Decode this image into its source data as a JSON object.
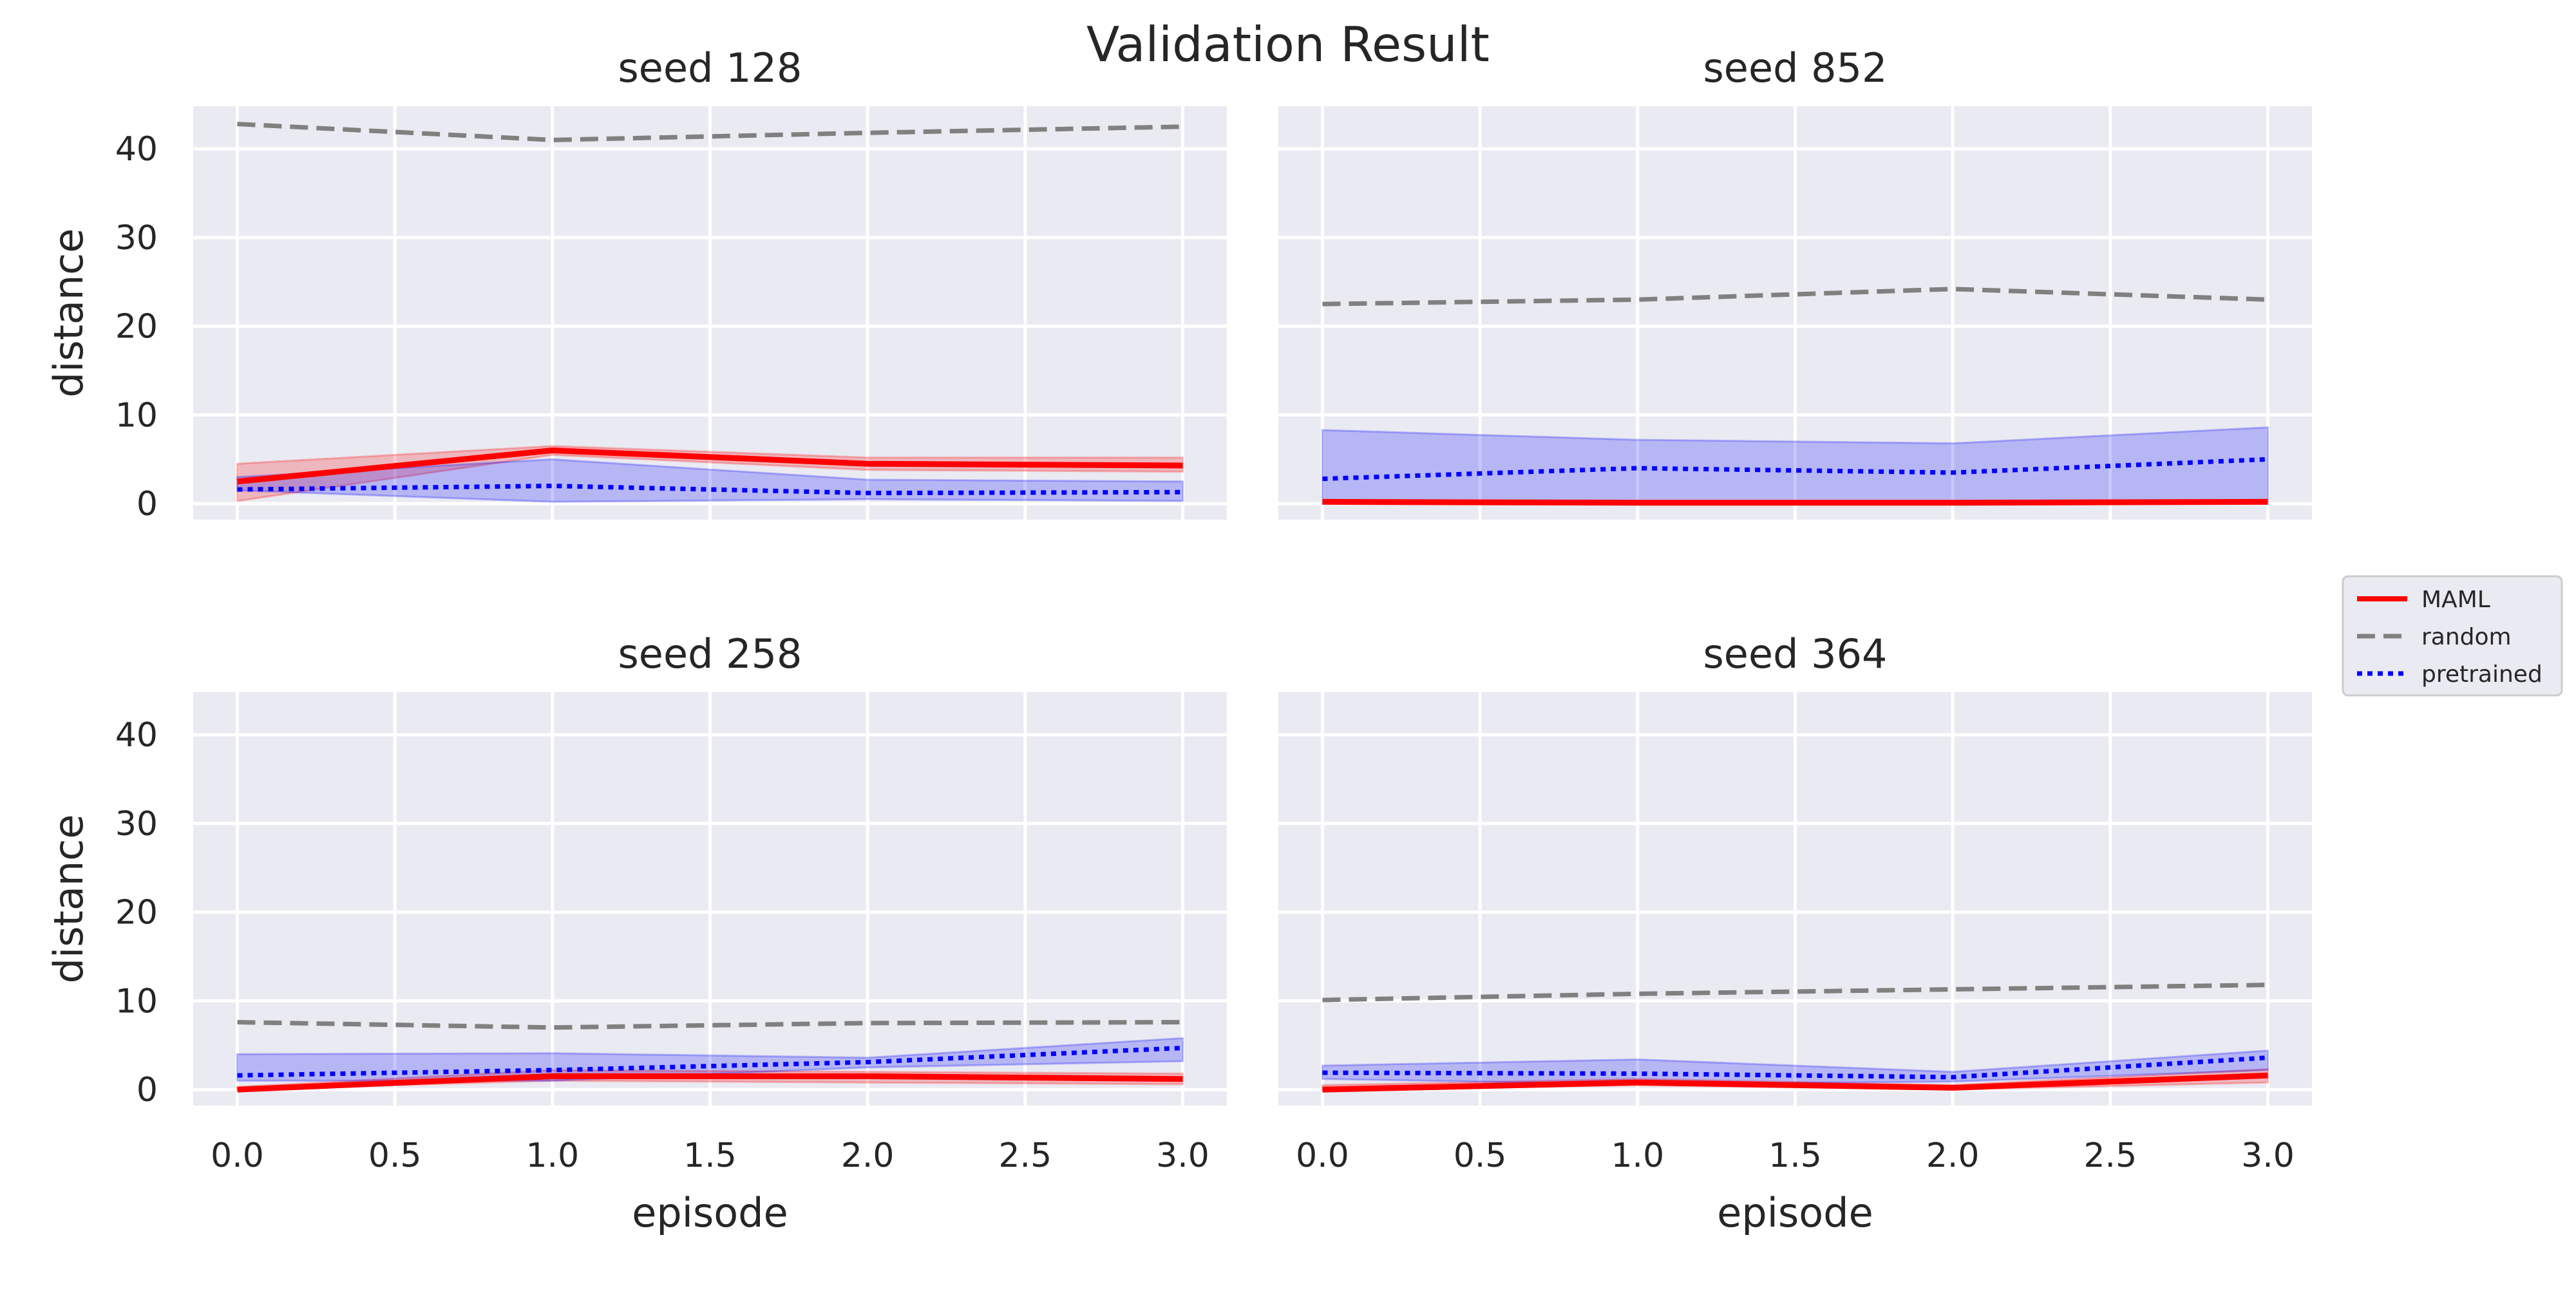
{
  "chart_data": {
    "type": "line",
    "title": "Validation Result",
    "xlabel": "episode",
    "ylabel": "distance",
    "xlim": [
      -0.14,
      3.14
    ],
    "ylim": [
      -1.8,
      44.8
    ],
    "x_ticks": [
      0.0,
      0.5,
      1.0,
      1.5,
      2.0,
      2.5,
      3.0
    ],
    "x_tick_labels": [
      "0.0",
      "0.5",
      "1.0",
      "1.5",
      "2.0",
      "2.5",
      "3.0"
    ],
    "y_ticks": [
      0,
      10,
      20,
      30,
      40
    ],
    "y_tick_labels": [
      "0",
      "10",
      "20",
      "30",
      "40"
    ],
    "grid": true,
    "legend_position": "center-right",
    "series_styles": [
      {
        "name": "MAML",
        "color": "#ff0000",
        "dash": "solid"
      },
      {
        "name": "random",
        "color": "#808080",
        "dash": "dashed"
      },
      {
        "name": "pretrained",
        "color": "#0000ff",
        "dash": "dotted"
      }
    ],
    "panels": [
      {
        "title": "seed 128",
        "x": [
          0,
          1,
          2,
          3
        ],
        "series": [
          {
            "name": "MAML",
            "values": [
              2.5,
              6.0,
              4.5,
              4.3
            ],
            "lower": [
              0.3,
              5.5,
              3.8,
              3.6
            ],
            "upper": [
              4.5,
              6.5,
              5.2,
              5.2
            ]
          },
          {
            "name": "random",
            "values": [
              42.8,
              41.0,
              41.8,
              42.5
            ]
          },
          {
            "name": "pretrained",
            "values": [
              1.6,
              2.0,
              1.2,
              1.3
            ],
            "lower": [
              1.5,
              0.2,
              0.5,
              0.3
            ],
            "upper": [
              3.0,
              5.0,
              2.7,
              2.5
            ]
          }
        ]
      },
      {
        "title": "seed 852",
        "x": [
          0,
          1,
          2,
          3
        ],
        "series": [
          {
            "name": "MAML",
            "values": [
              0.2,
              0.1,
              0.1,
              0.2
            ]
          },
          {
            "name": "random",
            "values": [
              22.5,
              23.0,
              24.2,
              23.0
            ]
          },
          {
            "name": "pretrained",
            "values": [
              2.8,
              4.0,
              3.5,
              5.0
            ],
            "lower": [
              0.0,
              0.0,
              0.0,
              0.0
            ],
            "upper": [
              8.3,
              7.2,
              6.8,
              8.6
            ]
          }
        ]
      },
      {
        "title": "seed 258",
        "x": [
          0,
          1,
          2,
          3
        ],
        "series": [
          {
            "name": "MAML",
            "values": [
              0.0,
              1.5,
              1.5,
              1.2
            ],
            "lower": [
              0.0,
              1.0,
              0.8,
              0.6
            ],
            "upper": [
              0.3,
              2.2,
              2.0,
              1.8
            ]
          },
          {
            "name": "random",
            "values": [
              7.6,
              7.0,
              7.5,
              7.6
            ]
          },
          {
            "name": "pretrained",
            "values": [
              1.6,
              2.2,
              3.1,
              4.7
            ],
            "lower": [
              1.0,
              1.0,
              2.5,
              3.2
            ],
            "upper": [
              4.0,
              4.1,
              3.6,
              5.8
            ]
          }
        ]
      },
      {
        "title": "seed 364",
        "x": [
          0,
          1,
          2,
          3
        ],
        "series": [
          {
            "name": "MAML",
            "values": [
              0.0,
              0.8,
              0.2,
              1.6
            ],
            "lower": [
              0.0,
              0.5,
              0.0,
              0.8
            ],
            "upper": [
              0.5,
              1.2,
              0.5,
              2.3
            ]
          },
          {
            "name": "random",
            "values": [
              10.1,
              10.8,
              11.3,
              11.8
            ]
          },
          {
            "name": "pretrained",
            "values": [
              1.9,
              1.8,
              1.4,
              3.6
            ],
            "lower": [
              1.2,
              0.6,
              0.9,
              2.2
            ],
            "upper": [
              2.7,
              3.4,
              2.0,
              4.4
            ]
          }
        ]
      }
    ],
    "legend": [
      "MAML",
      "random",
      "pretrained"
    ]
  }
}
